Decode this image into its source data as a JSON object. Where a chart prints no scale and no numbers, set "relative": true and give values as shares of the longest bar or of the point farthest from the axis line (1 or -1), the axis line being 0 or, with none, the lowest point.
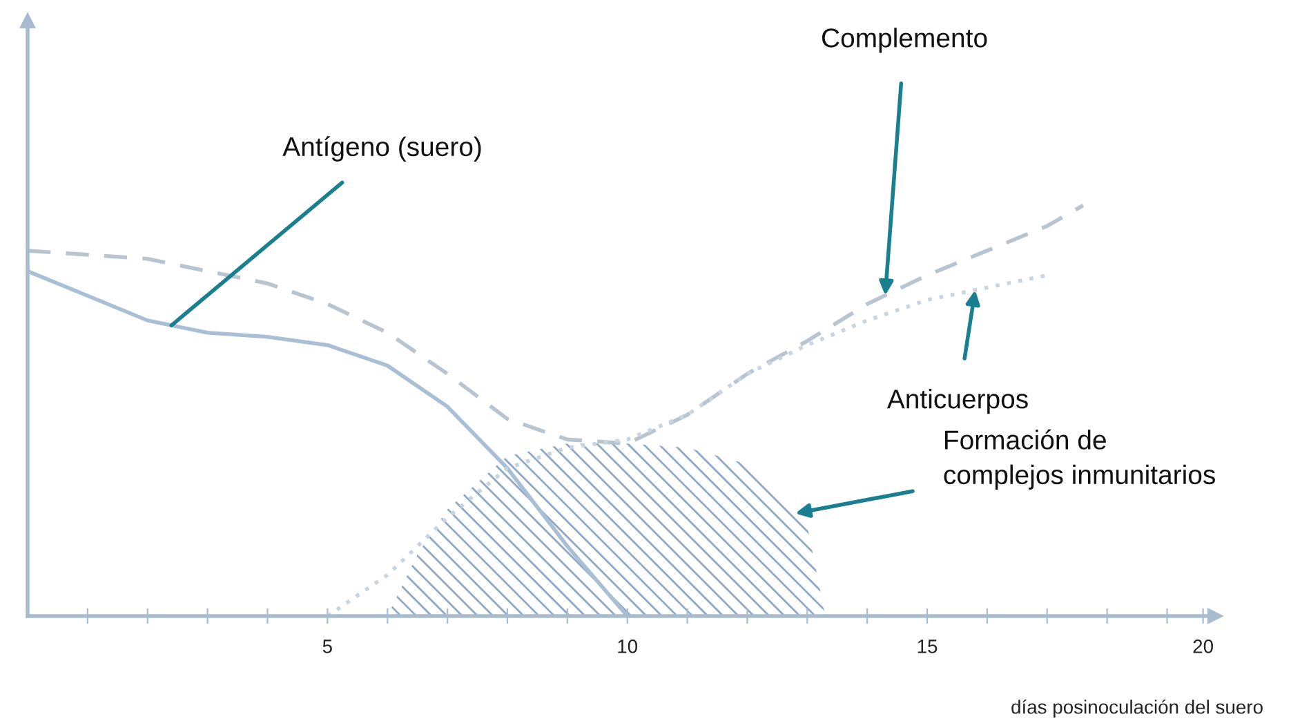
{
  "chart_data": {
    "type": "line",
    "relative": true,
    "xlabel": "días posinoculación del suero",
    "xlim": [
      0,
      19.8
    ],
    "xticks": [
      {
        "value": 1,
        "label": null
      },
      {
        "value": 2,
        "label": null
      },
      {
        "value": 3,
        "label": null
      },
      {
        "value": 4,
        "label": null
      },
      5,
      {
        "value": 6,
        "label": null
      },
      {
        "value": 7,
        "label": null
      },
      {
        "value": 8,
        "label": null
      },
      {
        "value": 9,
        "label": null
      },
      10,
      {
        "value": 11,
        "label": null
      },
      {
        "value": 12,
        "label": null
      },
      {
        "value": 13,
        "label": null
      },
      {
        "value": 14,
        "label": null
      },
      15,
      {
        "value": 16,
        "label": null
      },
      {
        "value": 17,
        "label": null
      },
      {
        "value": 18,
        "label": null
      },
      {
        "value": 19,
        "label": null
      },
      {
        "value": 19.6,
        "label": "20"
      }
    ],
    "series": [
      {
        "type": "area",
        "color": "#8fa8c8",
        "x": [
          6,
          6.5,
          7,
          8,
          9,
          10,
          11,
          12,
          13,
          13.3
        ],
        "values": [
          0,
          0.15,
          0.26,
          0.39,
          0.42,
          0.42,
          0.41,
          0.37,
          0.22,
          0
        ]
      },
      {
        "line_style": "solid",
        "color": "#a9bfd6",
        "x": [
          0,
          1,
          2,
          3,
          4,
          5,
          6,
          7,
          8,
          9,
          10
        ],
        "values": [
          0.84,
          0.78,
          0.72,
          0.69,
          0.68,
          0.66,
          0.61,
          0.51,
          0.36,
          0.17,
          0
        ]
      },
      {
        "line_style": "dashed",
        "color": "#b8c4d0",
        "x": [
          0,
          1,
          2,
          3,
          4,
          5,
          6,
          7,
          8,
          9,
          10,
          11,
          12,
          13,
          14,
          15,
          16,
          17,
          17.6
        ],
        "values": [
          0.89,
          0.88,
          0.87,
          0.84,
          0.81,
          0.76,
          0.69,
          0.59,
          0.48,
          0.43,
          0.42,
          0.49,
          0.59,
          0.67,
          0.76,
          0.83,
          0.89,
          0.95,
          1
        ]
      },
      {
        "line_style": "dotted",
        "color": "#c8d4e0",
        "x": [
          5,
          6,
          7,
          8,
          9,
          10,
          11,
          12,
          13,
          14,
          15,
          16,
          17
        ],
        "values": [
          0,
          0.1,
          0.24,
          0.36,
          0.41,
          0.43,
          0.49,
          0.59,
          0.66,
          0.72,
          0.77,
          0.8,
          0.83
        ]
      }
    ],
    "annotations": [
      {
        "text": "Antígeno (suero)",
        "x": 2.4,
        "y": 0.708
      },
      {
        "text": "Complemento",
        "x": 14.3,
        "y": 0.781
      },
      {
        "text": "Anticuerpos",
        "x": 15.8,
        "y": 0.794
      },
      {
        "text": "Formación de\ncomplejos inmunitarios",
        "x": 12.8,
        "y": 0.25
      }
    ]
  }
}
